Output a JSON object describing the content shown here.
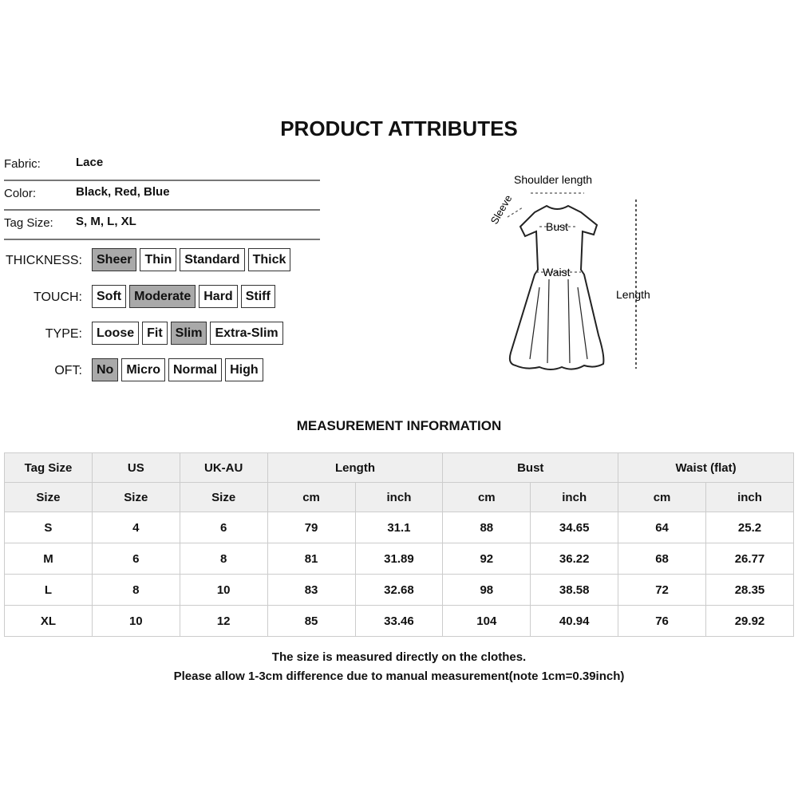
{
  "title": "PRODUCT ATTRIBUTES",
  "attributes": [
    {
      "label": "Fabric:",
      "value": "Lace"
    },
    {
      "label": "Color:",
      "value": "Black, Red, Blue"
    },
    {
      "label": "Tag Size:",
      "value": "S, M, L, XL"
    }
  ],
  "option_groups": [
    {
      "label": "THICKNESS:",
      "options": [
        "Sheer",
        "Thin",
        "Standard",
        "Thick"
      ],
      "selected": "Sheer"
    },
    {
      "label": "TOUCH:",
      "options": [
        "Soft",
        "Moderate",
        "Hard",
        "Stiff"
      ],
      "selected": "Moderate"
    },
    {
      "label": "TYPE:",
      "options": [
        "Loose",
        "Fit",
        "Slim",
        "Extra-Slim"
      ],
      "selected": "Slim"
    },
    {
      "label": "OFT:",
      "options": [
        "No",
        "Micro",
        "Normal",
        "High"
      ],
      "selected": "No"
    }
  ],
  "diagram": {
    "shoulder": "Shoulder length",
    "sleeve": "Sleeve",
    "bust": "Bust",
    "waist": "Waist",
    "length": "Length"
  },
  "measurement": {
    "title": "MEASUREMENT INFORMATION",
    "header1": [
      "Tag Size",
      "US",
      "UK-AU",
      "Length",
      "Bust",
      "Waist  (flat)"
    ],
    "header2": [
      "Size",
      "Size",
      "Size",
      "cm",
      "inch",
      "cm",
      "inch",
      "cm",
      "inch"
    ],
    "rows": [
      [
        "S",
        "4",
        "6",
        "79",
        "31.1",
        "88",
        "34.65",
        "64",
        "25.2"
      ],
      [
        "M",
        "6",
        "8",
        "81",
        "31.89",
        "92",
        "36.22",
        "68",
        "26.77"
      ],
      [
        "L",
        "8",
        "10",
        "83",
        "32.68",
        "98",
        "38.58",
        "72",
        "28.35"
      ],
      [
        "XL",
        "10",
        "12",
        "85",
        "33.46",
        "104",
        "40.94",
        "76",
        "29.92"
      ]
    ]
  },
  "notes": [
    "The size is measured directly on the clothes.",
    "Please allow 1-3cm difference due to manual measurement(note 1cm=0.39inch)"
  ],
  "colors": {
    "selected_option": "#a9a9a9",
    "header_bg": "#efefef"
  }
}
